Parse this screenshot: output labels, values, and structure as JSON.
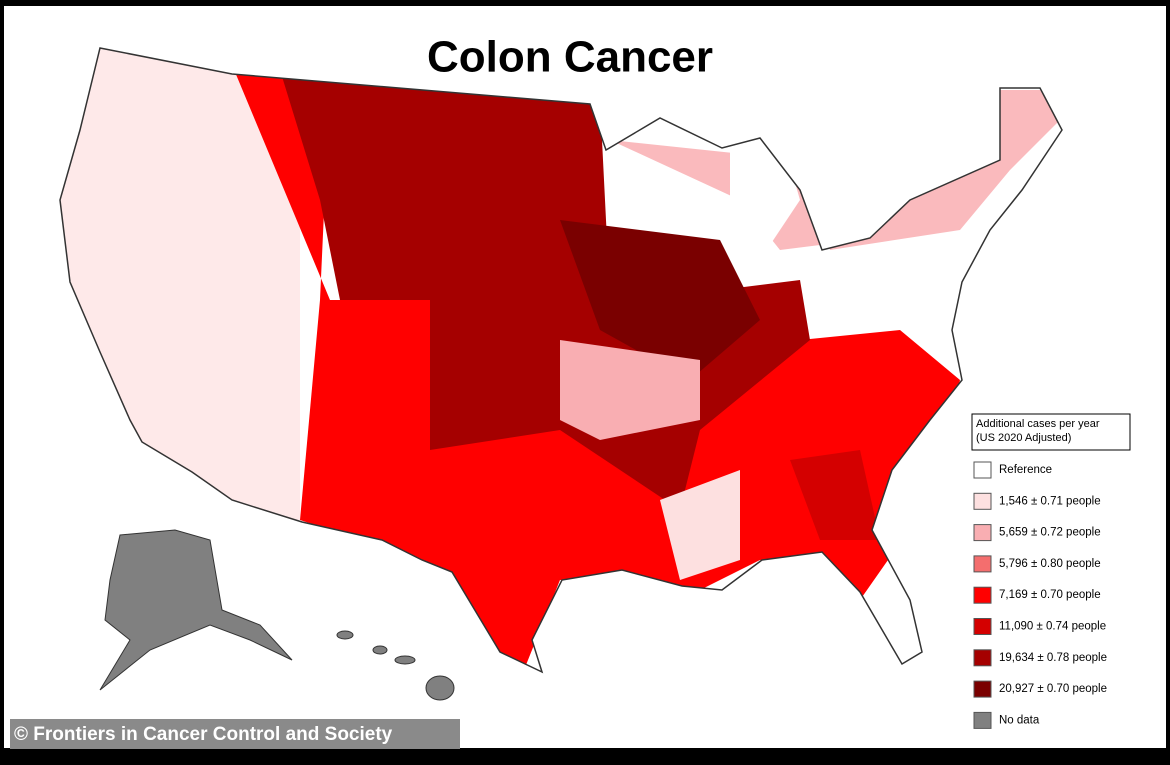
{
  "title": "Colon Cancer",
  "legend": {
    "title_lines": [
      "Additional cases per year",
      "(US 2020 Adjusted)"
    ],
    "items": [
      {
        "label": "Reference",
        "color": "#ffffff"
      },
      {
        "label": "1,546 ± 0.71 people",
        "color": "#fde0e0"
      },
      {
        "label": "5,659 ± 0.72 people",
        "color": "#f9aeb2"
      },
      {
        "label": "5,796 ± 0.80 people",
        "color": "#f46e6e"
      },
      {
        "label": "7,169 ± 0.70 people",
        "color": "#ff0000"
      },
      {
        "label": "11,090 ± 0.74 people",
        "color": "#d40000"
      },
      {
        "label": "19,634 ± 0.78 people",
        "color": "#a50000"
      },
      {
        "label": "20,927 ± 0.70 people",
        "color": "#7a0000"
      },
      {
        "label": "No data",
        "color": "#808080"
      }
    ]
  },
  "credit": "© Frontiers in Cancer Control and Society"
}
